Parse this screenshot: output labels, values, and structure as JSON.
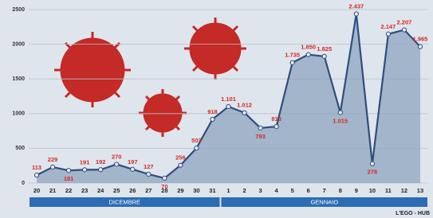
{
  "chart_data": {
    "type": "area",
    "categories": [
      "20",
      "21",
      "22",
      "23",
      "24",
      "25",
      "26",
      "27",
      "28",
      "29",
      "30",
      "31",
      "1",
      "2",
      "3",
      "4",
      "5",
      "6",
      "7",
      "8",
      "9",
      "10",
      "11",
      "12",
      "13"
    ],
    "values": [
      113,
      229,
      181,
      191,
      192,
      270,
      197,
      127,
      70,
      256,
      503,
      918,
      1101,
      1012,
      793,
      813,
      1735,
      1850,
      1825,
      1015,
      2437,
      278,
      2147,
      2207,
      1965
    ],
    "value_labels": [
      "113",
      "229",
      "181",
      "191",
      "192",
      "270",
      "197",
      "127",
      "70",
      "256",
      "503",
      "918",
      "1.101",
      "1.012",
      "793",
      "813",
      "1.735",
      "1.850",
      "1.825",
      "1.015",
      "2.437",
      "278",
      "2.147",
      "2.207",
      "1.965"
    ],
    "groups": [
      "DICEMBRE",
      "GENNAIO"
    ],
    "ylim": [
      0,
      2500
    ],
    "yticks": [
      0,
      500,
      1000,
      1500,
      2000,
      2500
    ],
    "grid": true,
    "color": "#2f4d7e",
    "fill": "#8fa4bf",
    "label_color": "#d42a23",
    "credit": "L'EGO - HUB"
  }
}
